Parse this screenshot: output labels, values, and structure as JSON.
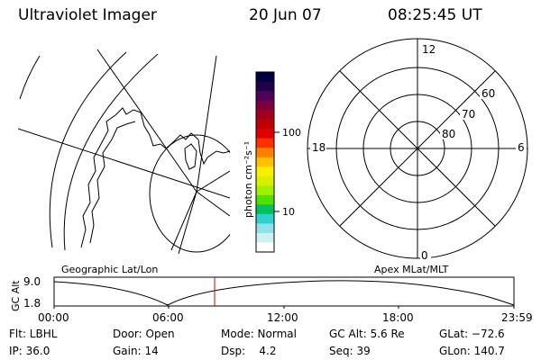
{
  "header": {
    "title": "Ultraviolet Imager",
    "date": "20 Jun 07",
    "time": "08:25:45 UT"
  },
  "left_panel": {
    "label": "Geographic Lat/Lon"
  },
  "right_panel": {
    "label": "Apex MLat/MLT",
    "mlt_labels": {
      "top": "12",
      "right": "6",
      "bottom": "0",
      "left": "18"
    },
    "mlat_labels": [
      "60",
      "70",
      "80"
    ]
  },
  "colorbar": {
    "unit_label": "photon cm⁻²s⁻¹",
    "ticks": [
      "100",
      "10"
    ],
    "colors": [
      "#000040",
      "#20004a",
      "#50005a",
      "#7a0040",
      "#a00020",
      "#c00000",
      "#e00000",
      "#ff3000",
      "#ff8000",
      "#ffc000",
      "#f8f000",
      "#d8f000",
      "#a0f000",
      "#50e000",
      "#00c060",
      "#30d0d0",
      "#90e0e8",
      "#d0f0f0",
      "#ffffff"
    ]
  },
  "timeline": {
    "ylabel": "GC Alt",
    "ytick_top": "9.0",
    "ytick_bottom": "1.8",
    "xticks": [
      "00:00",
      "06:00",
      "12:00",
      "18:00",
      "23:59"
    ],
    "marker_color": "#d00000"
  },
  "info": {
    "flt": "Flt: LBHL",
    "ip": "IP: 36.0",
    "door": "Door: Open",
    "gain": "Gain: 14",
    "mode": "Mode: Normal",
    "dsp": "Dsp:    4.2",
    "gcalt": "GC Alt: 5.6 Re",
    "seq": "Seq: 39",
    "glat": "GLat: −72.6",
    "glon": "GLon: 140.7"
  }
}
